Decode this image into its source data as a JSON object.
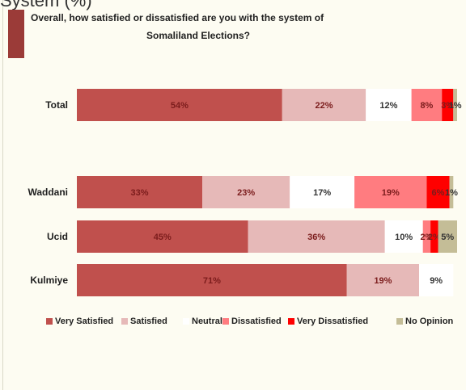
{
  "chart_data": {
    "type": "stacked-bar",
    "supertitle": "System (%)",
    "title": [
      "Overall, how satisfied or dissatisfied are you with the system of",
      "Somaliland Elections?"
    ],
    "categories": [
      "Total",
      "Waddani",
      "Ucid",
      "Kulmiye"
    ],
    "series": [
      {
        "name": "Very Satisfied",
        "color": "#c0504d",
        "values": [
          54,
          33,
          45,
          71
        ],
        "value_labels": [
          "54%",
          "33%",
          "45%",
          "71%"
        ]
      },
      {
        "name": "Satisfied",
        "color": "#e6b9b8",
        "values": [
          22,
          23,
          36,
          19
        ],
        "value_labels": [
          "22%",
          "23%",
          "36%",
          "19%"
        ]
      },
      {
        "name": "Neutral",
        "color": "#ffffff",
        "values": [
          12,
          17,
          10,
          9
        ],
        "value_labels": [
          "12%",
          "17%",
          "10%",
          "9%"
        ]
      },
      {
        "name": "Dissatisfied",
        "color": "#ff7c80",
        "values": [
          8,
          19,
          2,
          null
        ],
        "value_labels": [
          "8%",
          "19%",
          "2%",
          null
        ]
      },
      {
        "name": "Very Dissatisfied",
        "color": "#ff0000",
        "values": [
          3,
          6,
          2,
          null
        ],
        "value_labels": [
          "3%",
          "6%",
          "2%",
          null
        ]
      },
      {
        "name": "No Opinion",
        "color": "#c4bd97",
        "values": [
          1,
          1,
          5,
          null
        ],
        "value_labels": [
          "1%",
          "1%",
          "5%",
          null
        ]
      }
    ]
  }
}
